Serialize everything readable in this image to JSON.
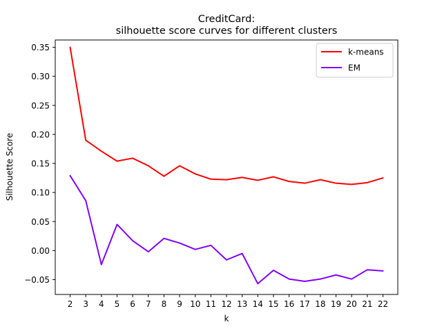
{
  "chart_data": {
    "type": "line",
    "title_line1": "CreditCard:",
    "title_line2": "silhouette score curves for different clusters",
    "xlabel": "k",
    "ylabel": "Silhouette Score",
    "x": [
      2,
      3,
      4,
      5,
      6,
      7,
      8,
      9,
      10,
      11,
      12,
      13,
      14,
      15,
      16,
      17,
      18,
      19,
      20,
      21,
      22
    ],
    "xlim": [
      1.05,
      22.95
    ],
    "ylim": [
      -0.0755,
      0.3625
    ],
    "yticks": [
      -0.05,
      0.0,
      0.05,
      0.1,
      0.15,
      0.2,
      0.25,
      0.3,
      0.35
    ],
    "ytick_labels": [
      "−0.05",
      "0.00",
      "0.05",
      "0.10",
      "0.15",
      "0.20",
      "0.25",
      "0.30",
      "0.35"
    ],
    "legend_position": "top-right",
    "series": [
      {
        "name": "k-means",
        "color": "#ff0000",
        "values": [
          0.35,
          0.19,
          0.171,
          0.154,
          0.159,
          0.146,
          0.128,
          0.146,
          0.132,
          0.123,
          0.122,
          0.126,
          0.121,
          0.127,
          0.119,
          0.116,
          0.122,
          0.116,
          0.114,
          0.117,
          0.125
        ]
      },
      {
        "name": "EM",
        "color": "#8000ff",
        "values": [
          0.129,
          0.086,
          -0.024,
          0.045,
          0.017,
          -0.002,
          0.021,
          0.013,
          0.002,
          0.009,
          -0.016,
          -0.005,
          -0.057,
          -0.034,
          -0.049,
          -0.053,
          -0.049,
          -0.042,
          -0.049,
          -0.033,
          -0.035
        ]
      }
    ]
  }
}
